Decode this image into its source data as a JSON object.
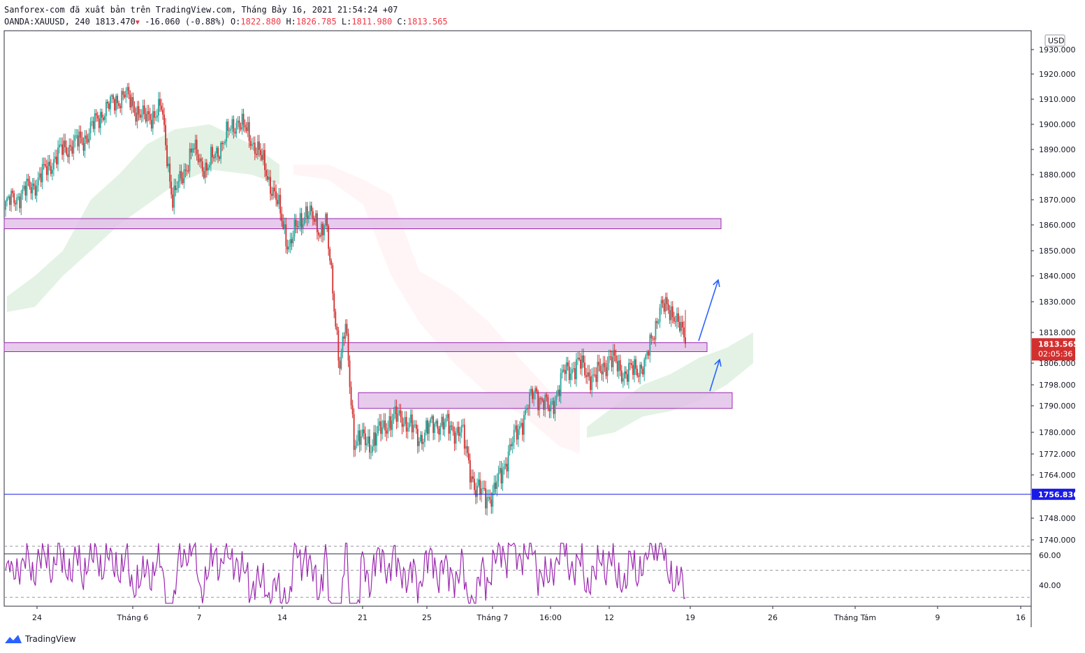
{
  "header": {
    "line1": "Sanforex-com đã xuất bản trên TradingView.com, Tháng Bảy 16, 2021 21:54:24 +07",
    "symbol": "OANDA:XAUUSD, 240",
    "last": "1813.470",
    "change": "-16.060 (-0.88%)",
    "o_label": "O:",
    "o_val": "1822.880",
    "h_label": "H:",
    "h_val": "1826.785",
    "l_label": "L:",
    "l_val": "1811.980",
    "c_label": "C:",
    "c_val": "1813.565"
  },
  "currency": "USD",
  "price_badge": {
    "price": "1813.565",
    "countdown": "02:05:36",
    "color": "#d32f2f"
  },
  "line_badge": {
    "price": "1756.836",
    "color": "#1a1ae6"
  },
  "brand": "TradingView",
  "chart_data": {
    "type": "candlestick",
    "price_ticks": [
      "1930.000",
      "1920.000",
      "1910.000",
      "1900.000",
      "1890.000",
      "1880.000",
      "1870.000",
      "1860.000",
      "1850.000",
      "1840.000",
      "1830.000",
      "1818.000",
      "1806.000",
      "1798.000",
      "1790.000",
      "1780.000",
      "1772.000",
      "1764.000",
      "1748.000",
      "1740.000"
    ],
    "rsi_ticks": [
      "60.00",
      "40.00"
    ],
    "x_ticks": [
      "24",
      "Tháng 6",
      "7",
      "14",
      "21",
      "25",
      "Tháng 7",
      "16:00",
      "12",
      "19",
      "26",
      "Tháng Tám",
      "9",
      "16"
    ],
    "zones": [
      {
        "low": 1858.5,
        "high": 1862.5
      },
      {
        "low": 1810.5,
        "high": 1814.0
      },
      {
        "low": 1789.0,
        "high": 1795.0
      }
    ],
    "horizontal_line": 1756.836,
    "colors": {
      "up": "#26a69a",
      "down": "#d32f2f",
      "zone": "#e1bee7",
      "rsi": "#9c27b0",
      "arrow": "#2962ff"
    },
    "ohlc_start": [
      1866.0,
      1872.0,
      1865.0,
      1868.5
    ],
    "ohlc_end": [
      1822.88,
      1826.785,
      1811.98,
      1813.565
    ]
  }
}
